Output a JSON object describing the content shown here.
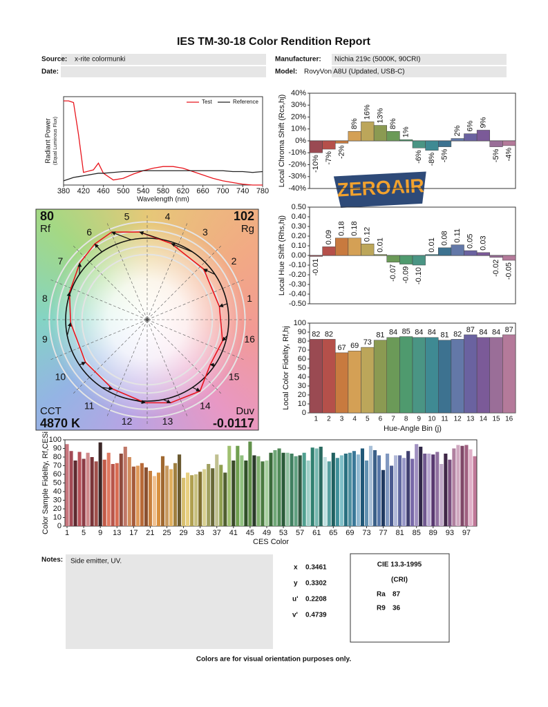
{
  "title": "IES TM-30-18 Color Rendition Report",
  "fields": [
    {
      "label": "Source:",
      "value": "x-rite colormunki"
    },
    {
      "label": "Date:"
    },
    {
      "label": "Manufacturer:",
      "value": "Nichia 219c (5000K, 90CRI)"
    },
    {
      "label": "Model:",
      "value": "RovyVon A8U (Updated, USB-C)"
    }
  ],
  "chart_data": [
    {
      "type": "line",
      "xlabel": "Wavelength (nm)",
      "ylabel": [
        "Radiant Power",
        "(Equal Luminous Flux)"
      ],
      "legend": "upper right",
      "x": [
        380,
        390,
        400,
        410,
        420,
        440,
        450,
        460,
        480,
        500,
        520,
        540,
        560,
        580,
        600,
        620,
        640,
        660,
        680,
        700,
        720,
        740,
        760,
        780
      ],
      "series": [
        {
          "name": "Test",
          "color": "#e8141c",
          "values": [
            1.0,
            1.0,
            0.98,
            0.6,
            0.15,
            0.18,
            0.26,
            0.14,
            0.06,
            0.08,
            0.13,
            0.17,
            0.2,
            0.22,
            0.22,
            0.2,
            0.16,
            0.12,
            0.08,
            0.05,
            0.03,
            0.01,
            0,
            0
          ]
        },
        {
          "name": "Reference",
          "color": "#222222",
          "values": [
            0.05,
            0.07,
            0.09,
            0.1,
            0.11,
            0.13,
            0.14,
            0.14,
            0.15,
            0.16,
            0.16,
            0.17,
            0.17,
            0.17,
            0.17,
            0.17,
            0.17,
            0.17,
            0.17,
            0.17,
            0.16,
            0.16,
            0.15,
            0.16
          ]
        }
      ],
      "xlim": [
        380,
        780
      ],
      "xticks": [
        380,
        420,
        460,
        500,
        540,
        580,
        620,
        660,
        700,
        740,
        780
      ],
      "ylim": [
        0,
        1.05
      ]
    },
    {
      "type": "bar",
      "ylabel": "Local Chroma Shift (Rcs,hj)",
      "values": [
        -10,
        -7,
        -2,
        8,
        16,
        13,
        8,
        1,
        -6,
        -8,
        -5,
        2,
        6,
        9,
        -5,
        -4
      ],
      "value_labels": [
        "-10%",
        "-7%",
        "-2%",
        "8%",
        "16%",
        "13%",
        "8%",
        "1%",
        "-6%",
        "-8%",
        "-5%",
        "2%",
        "6%",
        "9%",
        "-5%",
        "-4%"
      ],
      "colors": [
        "#9a4a52",
        "#b5504a",
        "#c87a3f",
        "#d4a055",
        "#bca65a",
        "#8b9a52",
        "#6b9a58",
        "#4f9a6e",
        "#4a9584",
        "#3f8a93",
        "#3d7290",
        "#6378a8",
        "#6a62a0",
        "#7b5a98",
        "#9a6e98",
        "#b47a9a"
      ],
      "ylim": [
        -40,
        40
      ],
      "yticks": [
        {
          "value": 40,
          "label": "40%"
        },
        {
          "value": 30,
          "label": "30%"
        },
        {
          "value": 20,
          "label": "20%"
        },
        {
          "value": 10,
          "label": "10%"
        },
        {
          "value": 0,
          "label": "0%"
        },
        {
          "value": -10,
          "label": "-10%"
        },
        {
          "value": -20,
          "label": "-20%"
        },
        {
          "value": -30,
          "label": "-30%"
        },
        {
          "value": -40,
          "label": "-40%"
        }
      ]
    },
    {
      "type": "bar",
      "ylabel": "Local Hue Shift (Rhs,hj)",
      "values": [
        -0.01,
        0.09,
        0.18,
        0.18,
        0.12,
        0.01,
        -0.07,
        -0.09,
        -0.1,
        0.01,
        0.08,
        0.11,
        0.05,
        0.03,
        -0.02,
        -0.05
      ],
      "value_labels": [
        "-0.01",
        "0.09",
        "0.18",
        "0.18",
        "0.12",
        "0.01",
        "-0.07",
        "-0.09",
        "-0.10",
        "0.01",
        "0.08",
        "0.11",
        "0.05",
        "0.03",
        "-0.02",
        "-0.05"
      ],
      "colors": [
        "#9a4a52",
        "#b5504a",
        "#c87a3f",
        "#d4a055",
        "#bca65a",
        "#8b9a52",
        "#6b9a58",
        "#4f9a6e",
        "#4a9584",
        "#3f8a93",
        "#3d7290",
        "#6378a8",
        "#6a62a0",
        "#7b5a98",
        "#9a6e98",
        "#b47a9a"
      ],
      "ylim": [
        -0.5,
        0.5
      ],
      "yticks": [
        {
          "value": 0.5,
          "label": "0.50"
        },
        {
          "value": 0.4,
          "label": "0.40"
        },
        {
          "value": 0.3,
          "label": "0.30"
        },
        {
          "value": 0.2,
          "label": "0.20"
        },
        {
          "value": 0.1,
          "label": "0.10"
        },
        {
          "value": 0,
          "label": "0.00"
        },
        {
          "value": -0.1,
          "label": "-0.10"
        },
        {
          "value": -0.2,
          "label": "-0.20"
        },
        {
          "value": -0.3,
          "label": "-0.30"
        },
        {
          "value": -0.4,
          "label": "-0.40"
        },
        {
          "value": -0.5,
          "label": "-0.50"
        }
      ]
    },
    {
      "type": "bar",
      "ylabel": "Local Color Fidelity, Rf,hj",
      "xlabel": "Hue-Angle Bin (j)",
      "categories": [
        1,
        2,
        3,
        4,
        5,
        6,
        7,
        8,
        9,
        10,
        11,
        12,
        13,
        14,
        15,
        16
      ],
      "values": [
        82,
        82,
        67,
        69,
        73,
        81,
        84,
        85,
        84,
        84,
        81,
        82,
        87,
        84,
        84,
        87
      ],
      "colors": [
        "#9a4a52",
        "#b5504a",
        "#c87a3f",
        "#d4a055",
        "#bca65a",
        "#8b9a52",
        "#6b9a58",
        "#4f9a6e",
        "#4a9584",
        "#3f8a93",
        "#3d7290",
        "#6378a8",
        "#6a62a0",
        "#7b5a98",
        "#9a6e98",
        "#b47a9a"
      ],
      "ylim": [
        0,
        100
      ],
      "yticks": [
        0,
        10,
        20,
        30,
        40,
        50,
        60,
        70,
        80,
        90,
        100
      ]
    },
    {
      "type": "bar",
      "ylabel": "Color Sample Fidelity, Rf,CESi",
      "xlabel": "CES Color",
      "x": [
        1,
        2,
        3,
        4,
        5,
        6,
        7,
        8,
        9,
        10,
        11,
        12,
        13,
        14,
        15,
        16,
        17,
        18,
        19,
        20,
        21,
        22,
        23,
        24,
        25,
        26,
        27,
        28,
        29,
        30,
        31,
        32,
        33,
        34,
        35,
        36,
        37,
        38,
        39,
        40,
        41,
        42,
        43,
        44,
        45,
        46,
        47,
        48,
        49,
        50,
        51,
        52,
        53,
        54,
        55,
        56,
        57,
        58,
        59,
        60,
        61,
        62,
        63,
        64,
        65,
        66,
        67,
        68,
        69,
        70,
        71,
        72,
        73,
        74,
        75,
        76,
        77,
        78,
        79,
        80,
        81,
        82,
        83,
        84,
        85,
        86,
        87,
        88,
        89,
        90,
        91,
        92,
        93,
        94,
        95,
        96,
        97,
        98,
        99
      ],
      "values": [
        95,
        87,
        76,
        86,
        78,
        85,
        80,
        75,
        97,
        77,
        85,
        72,
        73,
        84,
        92,
        80,
        69,
        70,
        73,
        68,
        64,
        58,
        62,
        81,
        70,
        66,
        73,
        83,
        56,
        62,
        59,
        60,
        63,
        66,
        72,
        67,
        83,
        71,
        62,
        93,
        76,
        93,
        82,
        76,
        98,
        82,
        81,
        75,
        76,
        85,
        88,
        90,
        85,
        85,
        84,
        81,
        82,
        85,
        76,
        91,
        90,
        92,
        80,
        75,
        85,
        79,
        82,
        84,
        85,
        87,
        83,
        90,
        76,
        93,
        88,
        82,
        65,
        84,
        70,
        82,
        82,
        79,
        87,
        78,
        95,
        92,
        84,
        84,
        83,
        86,
        72,
        84,
        77,
        90,
        94,
        93,
        94,
        89,
        81
      ],
      "colors": [
        "#c9777f",
        "#a34a55",
        "#5e2a30",
        "#b7525a",
        "#8c3b45",
        "#d08a8c",
        "#7a3438",
        "#a0504c",
        "#3a2626",
        "#c25a48",
        "#e07a62",
        "#b8554a",
        "#d86b52",
        "#8e4a3c",
        "#c07868",
        "#d08c5c",
        "#a65a3a",
        "#e09a5a",
        "#b86a38",
        "#8a5030",
        "#c8803e",
        "#f0c090",
        "#d89040",
        "#a06830",
        "#c89a60",
        "#e0b060",
        "#a08040",
        "#6a5a30",
        "#d8c070",
        "#e8d080",
        "#b0a050",
        "#c8c080",
        "#807030",
        "#d8d090",
        "#a0a060",
        "#686838",
        "#c0c090",
        "#90a050",
        "#506030",
        "#a0c070",
        "#3a4a28",
        "#70a050",
        "#90c080",
        "#305028",
        "#60904a",
        "#2a3a2a",
        "#80b070",
        "#4a7a40",
        "#a8d0a0",
        "#3a6a3a",
        "#70a878",
        "#508a58",
        "#2a5a38",
        "#90c0a0",
        "#408060",
        "#60a080",
        "#305840",
        "#50a090",
        "#a0d0c8",
        "#308070",
        "#78b8b0",
        "#2a6a60",
        "#c0e0e0",
        "#58a0a0",
        "#206060",
        "#40909a",
        "#80c0c8",
        "#2a7080",
        "#5090a0",
        "#3a7898",
        "#90b8d0",
        "#205878",
        "#6090b0",
        "#a8c0d8",
        "#3a6088",
        "#5878a8",
        "#203a60",
        "#8098c0",
        "#4a5a90",
        "#b0b8d8",
        "#6068a0",
        "#9898c8",
        "#404070",
        "#7868a8",
        "#a090c0",
        "#302848",
        "#705890",
        "#b8a8d0",
        "#583870",
        "#9070a0",
        "#c0a8c8",
        "#402848",
        "#7a5080",
        "#b080a0",
        "#d0a8c0",
        "#804868",
        "#a06080",
        "#e0b0c8",
        "#c07898",
        "#903860"
      ],
      "xlim": [
        0.5,
        99.5
      ],
      "xticks": [
        1,
        5,
        9,
        13,
        17,
        21,
        25,
        29,
        33,
        37,
        41,
        45,
        49,
        53,
        57,
        61,
        65,
        69,
        73,
        77,
        81,
        85,
        89,
        93,
        97
      ],
      "ylim": [
        0,
        100
      ],
      "yticks": [
        0,
        10,
        20,
        30,
        40,
        50,
        60,
        70,
        80,
        90,
        100
      ]
    }
  ],
  "vector_graphic": {
    "rf_value": 80,
    "rf_label": "Rf",
    "rg_value": 102,
    "rg_label": "Rg",
    "cct_label": "CCT",
    "cct": "4870 K",
    "duv_label": "Duv",
    "duv": -0.0117,
    "bin_labels": [
      1,
      2,
      3,
      4,
      5,
      6,
      7,
      8,
      9,
      10,
      11,
      12,
      13,
      14,
      15,
      16
    ],
    "test_color": "#e8141c",
    "reference_color": "#111111"
  },
  "watermark": "ZEROAIR",
  "notes": {
    "label": "Notes:",
    "text": "Side emitter, UV."
  },
  "chromaticity": [
    {
      "label": "x",
      "value": 0.3461
    },
    {
      "label": "y",
      "value": 0.3302
    },
    {
      "label": "u'",
      "value": 0.2208
    },
    {
      "label": "v'",
      "value": 0.4739
    }
  ],
  "cri": {
    "title": "CIE 13.3-1995",
    "subtitle": "(CRI)",
    "ra_label": "Ra",
    "ra": 87,
    "r9_label": "R9",
    "r9": 36
  },
  "footer": "Colors are for visual orientation purposes only."
}
